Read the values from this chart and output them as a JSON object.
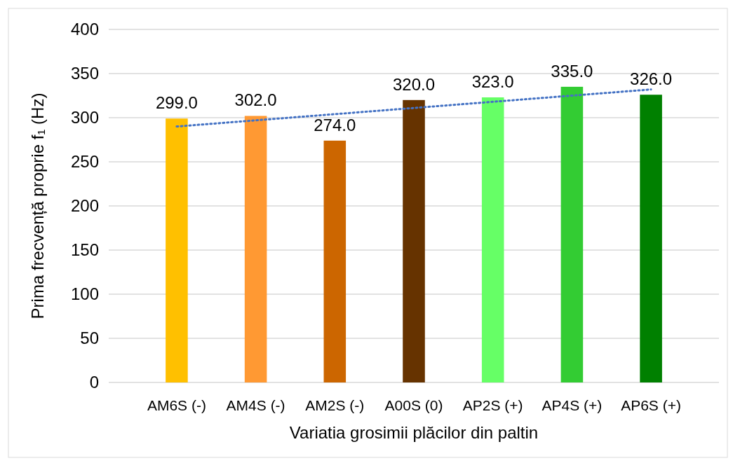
{
  "chart_data": {
    "type": "bar",
    "xlabel": "Variatia grosimii plăcilor din paltin",
    "ylabel": "Prima frecvență proprie f₁ (Hz)",
    "categories": [
      "AM6S (-)",
      "AM4S (-)",
      "AM2S (-)",
      "A00S (0)",
      "AP2S (+)",
      "AP4S (+)",
      "AP6S (+)"
    ],
    "series": [
      {
        "values": [
          299,
          302,
          274,
          320,
          323,
          335,
          326
        ],
        "colors": [
          "#ffc000",
          "#ff9933",
          "#cc6600",
          "#663300",
          "#66ff66",
          "#33cc33",
          "#008000"
        ],
        "value_labels": [
          "299.0",
          "302.0",
          "274.0",
          "320.0",
          "323.0",
          "335.0",
          "326.0"
        ]
      },
      {
        "type": "line",
        "color": "#4472c4",
        "line_style": "dotted",
        "values": [
          290,
          297,
          304,
          311,
          318,
          325,
          332
        ]
      }
    ],
    "ylim": [
      0,
      400
    ],
    "yticks": [
      0,
      50,
      100,
      150,
      200,
      250,
      300,
      350,
      400
    ],
    "grid": "y"
  }
}
